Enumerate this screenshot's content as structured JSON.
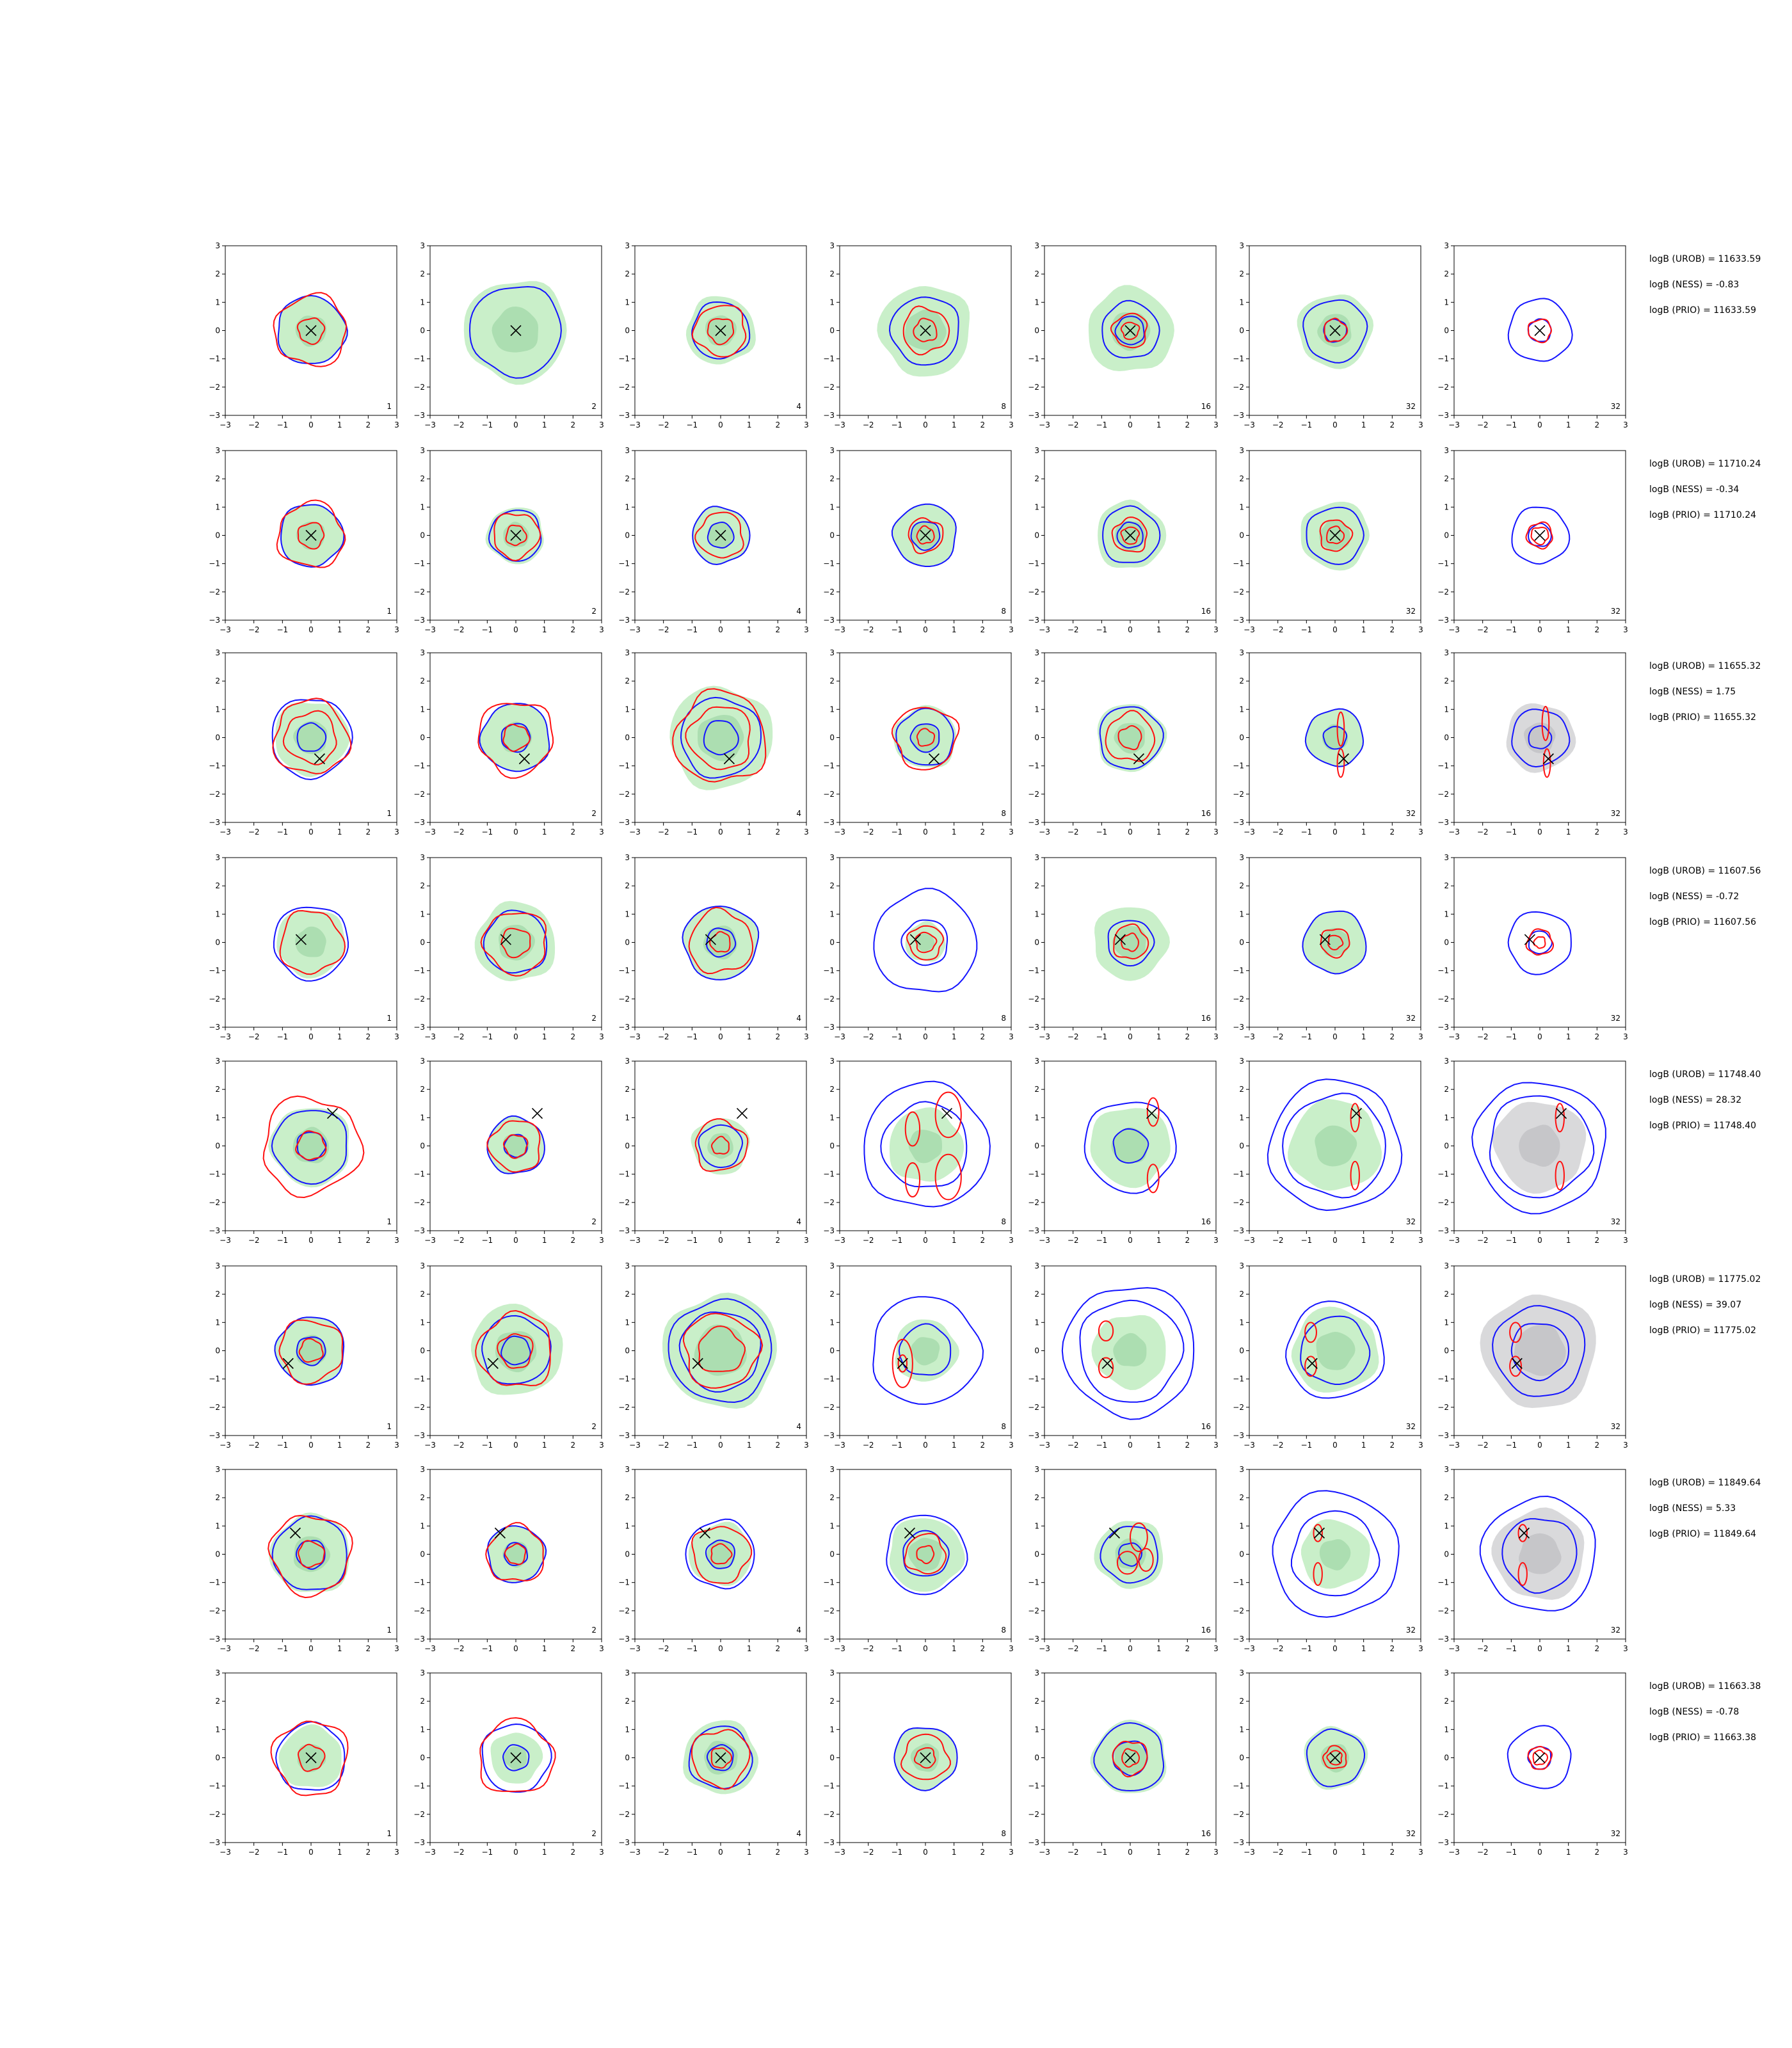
{
  "chart_data": {
    "type": "contour-grid",
    "xlim": [
      -3,
      3
    ],
    "ylim": [
      -3,
      3
    ],
    "ticks": [
      -3,
      -2,
      -1,
      0,
      1,
      2,
      3
    ],
    "grid": false,
    "colors": {
      "filled": "#c9efc9",
      "filled_core": "#9fd7a6",
      "grey": "#d9d9db",
      "grey_core": "#bdbdc2",
      "blue": "#1414ff",
      "red": "#ff1010",
      "marker": "#000000"
    },
    "columns": [
      {
        "label": "1",
        "fill": "green"
      },
      {
        "label": "2",
        "fill": "green"
      },
      {
        "label": "4",
        "fill": "green"
      },
      {
        "label": "8",
        "fill": "green"
      },
      {
        "label": "16",
        "fill": "green"
      },
      {
        "label": "32",
        "fill": "green"
      },
      {
        "label": "32",
        "fill": "grey"
      }
    ],
    "rows": [
      {
        "marker": [
          0.0,
          0.0
        ],
        "annotations": [
          "logB (UROB) = 11633.59",
          "logB (NESS) = -0.83",
          "logB (PRIO) = 11633.59"
        ],
        "fill": [
          1.2,
          1.8,
          1.2,
          1.6,
          1.5,
          1.3,
          0.0
        ],
        "blue": [
          [
            1.2
          ],
          [
            1.6
          ],
          [
            1.0
          ],
          [
            1.2
          ],
          [
            1.0,
            0.5
          ],
          [
            1.1,
            0.4
          ],
          [
            1.1,
            0.4
          ]
        ],
        "red": [
          [
            1.25,
            0.45
          ],
          [],
          [
            0.9,
            0.45
          ],
          [
            0.8,
            0.4
          ],
          [
            0.6,
            0.3
          ],
          [
            0.4
          ],
          [
            0.4
          ]
        ]
      },
      {
        "marker": [
          0.0,
          0.0
        ],
        "annotations": [
          "logB (UROB) = 11710.24",
          "logB (NESS) = -0.34",
          "logB (PRIO) = 11710.24"
        ],
        "fill": [
          1.1,
          1.0,
          1.0,
          1.1,
          1.2,
          1.2,
          0.0
        ],
        "blue": [
          [
            1.1
          ],
          [
            0.9
          ],
          [
            1.0,
            0.45
          ],
          [
            1.1,
            0.5
          ],
          [
            1.0,
            0.45
          ],
          [
            1.0
          ],
          [
            1.0,
            0.4
          ]
        ],
        "red": [
          [
            1.15,
            0.45
          ],
          [
            0.8,
            0.35
          ],
          [
            0.8
          ],
          [
            0.6,
            0.3
          ],
          [
            0.6,
            0.3
          ],
          [
            0.55,
            0.3
          ],
          [
            0.45,
            0.3
          ]
        ]
      },
      {
        "marker": [
          0.3,
          -0.75
        ],
        "annotations": [
          "logB (UROB) = 11655.32",
          "logB (NESS) = 1.75",
          "logB (PRIO) = 11655.32"
        ],
        "fill": [
          1.3,
          1.2,
          1.8,
          1.1,
          1.2,
          1.0,
          1.2
        ],
        "blue": [
          [
            1.4,
            0.5
          ],
          [
            1.2,
            0.5
          ],
          [
            1.4,
            0.6
          ],
          [
            1.0,
            0.5
          ],
          [
            1.1
          ],
          [
            1.0,
            0.4
          ],
          [
            1.0,
            0.4
          ]
        ],
        "red": [
          [
            1.3,
            0.9
          ],
          [
            1.3,
            0.45
          ],
          [
            1.6,
            1.1
          ],
          [
            1.1,
            0.3
          ],
          [
            0.85,
            0.4
          ],
          [],
          []
        ]
      },
      {
        "marker": [
          -0.35,
          0.1
        ],
        "annotations": [
          "logB (UROB) = 11607.56",
          "logB (NESS) = -0.72",
          "logB (PRIO) = 11607.56"
        ],
        "fill": [
          1.2,
          1.4,
          1.3,
          0.7,
          1.3,
          1.1,
          0.0
        ],
        "blue": [
          [
            1.3
          ],
          [
            1.1
          ],
          [
            1.3,
            0.5
          ],
          [
            1.8,
            0.8
          ],
          [
            0.8
          ],
          [
            1.1
          ],
          [
            1.1,
            0.4
          ]
        ],
        "red": [
          [
            1.1
          ],
          [
            1.1,
            0.5
          ],
          [
            1.1,
            0.35
          ],
          [
            0.6,
            0.35
          ],
          [
            0.6,
            0.3
          ],
          [
            0.5,
            0.25
          ],
          [
            0.45,
            0.2
          ]
        ]
      },
      {
        "marker": [
          0.75,
          1.15
        ],
        "annotations": [
          "logB (UROB) = 11748.40",
          "logB (NESS) = 28.32",
          "logB (PRIO) = 11748.40"
        ],
        "fill": [
          1.4,
          1.0,
          1.0,
          1.3,
          1.4,
          1.6,
          1.6
        ],
        "blue": [
          [
            1.3,
            0.5
          ],
          [
            1.0,
            0.4
          ],
          [
            0.75
          ],
          [
            2.2,
            1.5
          ],
          [
            1.6,
            0.6
          ],
          [
            2.3,
            1.8
          ],
          [
            2.3,
            1.8
          ]
        ],
        "red": [
          [
            1.7,
            0.5
          ],
          [
            0.9,
            0.4
          ],
          [
            0.9,
            0.3
          ],
          [],
          [],
          [],
          []
        ]
      },
      {
        "marker": [
          -0.8,
          -0.45
        ],
        "annotations": [
          "logB (UROB) = 11775.02",
          "logB (NESS) = 39.07",
          "logB (PRIO) = 11775.02"
        ],
        "fill": [
          1.2,
          1.6,
          2.0,
          1.1,
          1.3,
          1.5,
          2.0
        ],
        "blue": [
          [
            1.2,
            0.5
          ],
          [
            1.2,
            0.5
          ],
          [
            1.8,
            1.4
          ],
          [
            1.9,
            0.9
          ],
          [
            2.3,
            1.8
          ],
          [
            1.7,
            1.2
          ],
          [
            1.6,
            1.0
          ]
        ],
        "red": [
          [
            1.1,
            0.4
          ],
          [
            1.3,
            0.6
          ],
          [
            1.3,
            0.8
          ],
          [],
          [],
          [],
          []
        ]
      },
      {
        "marker": [
          -0.55,
          0.75
        ],
        "annotations": [
          "logB (UROB) = 11849.64",
          "logB (NESS) = 5.33",
          "logB (PRIO) = 11849.64"
        ],
        "fill": [
          1.4,
          1.0,
          1.1,
          1.3,
          1.2,
          1.2,
          1.6
        ],
        "blue": [
          [
            1.3,
            0.5
          ],
          [
            1.0,
            0.4
          ],
          [
            1.2,
            0.5
          ],
          [
            1.4,
            0.8
          ],
          [
            1.0,
            0.4
          ],
          [
            2.2,
            1.5
          ],
          [
            2.0,
            1.3
          ]
        ],
        "red": [
          [
            1.4,
            0.45
          ],
          [
            1.0,
            0.35
          ],
          [
            1.0,
            0.35
          ],
          [
            0.7,
            0.3
          ],
          [],
          [],
          []
        ]
      },
      {
        "marker": [
          0.0,
          0.0
        ],
        "annotations": [
          "logB (UROB) = 11663.38",
          "logB (NESS) = -0.78",
          "logB (PRIO) = 11663.38"
        ],
        "fill": [
          1.1,
          0.9,
          1.3,
          1.1,
          1.3,
          1.1,
          0.0
        ],
        "blue": [
          [
            1.2
          ],
          [
            1.2,
            0.45
          ],
          [
            1.1,
            0.45
          ],
          [
            1.1
          ],
          [
            1.2,
            0.6
          ],
          [
            1.0
          ],
          [
            1.1,
            0.4
          ]
        ],
        "red": [
          [
            1.3,
            0.45
          ],
          [
            1.3
          ],
          [
            1.0,
            0.35
          ],
          [
            0.8,
            0.35
          ],
          [
            0.6,
            0.3
          ],
          [
            0.4,
            0.25
          ],
          [
            0.4,
            0.25
          ]
        ]
      }
    ],
    "red_ellipses": [
      {
        "row": 2,
        "col": 5,
        "items": [
          [
            0.2,
            0.3,
            0.12,
            0.6
          ],
          [
            0.2,
            -0.9,
            0.12,
            0.5
          ]
        ]
      },
      {
        "row": 2,
        "col": 6,
        "items": [
          [
            0.2,
            0.5,
            0.12,
            0.6
          ],
          [
            0.25,
            -0.9,
            0.12,
            0.5
          ]
        ]
      },
      {
        "row": 4,
        "col": 3,
        "items": [
          [
            0.8,
            1.1,
            0.45,
            0.8
          ],
          [
            0.8,
            -1.1,
            0.45,
            0.8
          ],
          [
            -0.45,
            0.6,
            0.25,
            0.6
          ],
          [
            -0.45,
            -1.2,
            0.25,
            0.6
          ]
        ]
      },
      {
        "row": 4,
        "col": 4,
        "items": [
          [
            0.8,
            1.2,
            0.2,
            0.5
          ],
          [
            0.8,
            -1.15,
            0.2,
            0.5
          ]
        ]
      },
      {
        "row": 4,
        "col": 5,
        "items": [
          [
            0.7,
            1.0,
            0.15,
            0.5
          ],
          [
            0.7,
            -1.05,
            0.15,
            0.5
          ]
        ]
      },
      {
        "row": 4,
        "col": 6,
        "items": [
          [
            0.7,
            1.0,
            0.15,
            0.5
          ],
          [
            0.7,
            -1.05,
            0.15,
            0.5
          ]
        ]
      },
      {
        "row": 5,
        "col": 3,
        "items": [
          [
            -0.8,
            -0.45,
            0.35,
            0.85
          ],
          [
            -0.8,
            -0.45,
            0.15,
            0.3
          ]
        ]
      },
      {
        "row": 5,
        "col": 4,
        "items": [
          [
            -0.85,
            0.7,
            0.25,
            0.35
          ],
          [
            -0.85,
            -0.6,
            0.25,
            0.35
          ]
        ]
      },
      {
        "row": 5,
        "col": 5,
        "items": [
          [
            -0.85,
            0.65,
            0.2,
            0.35
          ],
          [
            -0.85,
            -0.55,
            0.2,
            0.35
          ]
        ]
      },
      {
        "row": 5,
        "col": 6,
        "items": [
          [
            -0.85,
            0.65,
            0.2,
            0.35
          ],
          [
            -0.85,
            -0.55,
            0.2,
            0.35
          ]
        ]
      },
      {
        "row": 6,
        "col": 4,
        "items": [
          [
            0.3,
            0.6,
            0.3,
            0.5
          ],
          [
            0.55,
            -0.2,
            0.25,
            0.4
          ],
          [
            -0.1,
            -0.3,
            0.35,
            0.4
          ]
        ]
      },
      {
        "row": 6,
        "col": 5,
        "items": [
          [
            -0.6,
            0.75,
            0.15,
            0.3
          ],
          [
            -0.6,
            -0.7,
            0.15,
            0.4
          ]
        ]
      },
      {
        "row": 6,
        "col": 6,
        "items": [
          [
            -0.6,
            0.75,
            0.15,
            0.3
          ],
          [
            -0.6,
            -0.7,
            0.15,
            0.4
          ]
        ]
      }
    ]
  }
}
